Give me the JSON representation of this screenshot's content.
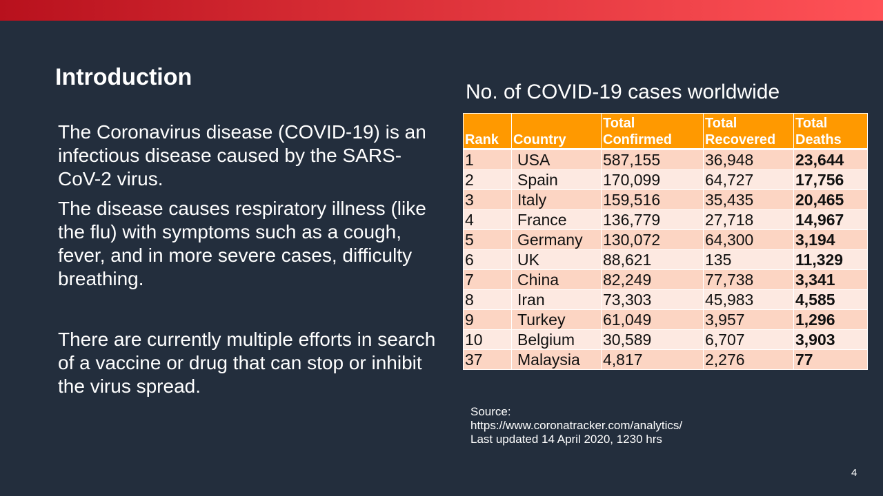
{
  "slide": {
    "title": "Introduction",
    "paragraphs": [
      "The Coronavirus disease (COVID-19) is an infectious disease caused by the SARS-CoV-2 virus.",
      "The disease causes respiratory illness (like the flu) with symptoms such as a cough, fever, and in more severe cases, difficulty breathing.",
      "There are currently multiple efforts in search of a vaccine or drug that can stop or inhibit the virus spread."
    ],
    "page_number": "4"
  },
  "table": {
    "title": "No. of COVID-19 cases worldwide",
    "headers": {
      "rank": "Rank",
      "country": "Country",
      "confirmed_1": "Total",
      "confirmed_2": "Confirmed",
      "recovered_1": "Total",
      "recovered_2": "Recovered",
      "deaths_1": "Total",
      "deaths_2": "Deaths"
    },
    "rows": [
      {
        "rank": "1",
        "country": "USA",
        "confirmed": "587,155",
        "recovered": "36,948",
        "deaths": "23,644"
      },
      {
        "rank": "2",
        "country": "Spain",
        "confirmed": "170,099",
        "recovered": "64,727",
        "deaths": "17,756"
      },
      {
        "rank": "3",
        "country": "Italy",
        "confirmed": "159,516",
        "recovered": "35,435",
        "deaths": "20,465"
      },
      {
        "rank": "4",
        "country": "France",
        "confirmed": "136,779",
        "recovered": "27,718",
        "deaths": "14,967"
      },
      {
        "rank": "5",
        "country": "Germany",
        "confirmed": "130,072",
        "recovered": "64,300",
        "deaths": "3,194"
      },
      {
        "rank": "6",
        "country": "UK",
        "confirmed": "88,621",
        "recovered": "135",
        "deaths": "11,329"
      },
      {
        "rank": "7",
        "country": "China",
        "confirmed": "82,249",
        "recovered": "77,738",
        "deaths": "3,341"
      },
      {
        "rank": "8",
        "country": "Iran",
        "confirmed": "73,303",
        "recovered": "45,983",
        "deaths": "4,585"
      },
      {
        "rank": "9",
        "country": "Turkey",
        "confirmed": "61,049",
        "recovered": "3,957",
        "deaths": "1,296"
      },
      {
        "rank": "10",
        "country": "Belgium",
        "confirmed": "30,589",
        "recovered": "6,707",
        "deaths": "3,903"
      },
      {
        "rank": "37",
        "country": "Malaysia",
        "confirmed": "4,817",
        "recovered": "2,276",
        "deaths": "77"
      }
    ]
  },
  "source": {
    "label": "Source:",
    "url": "https://www.coronatracker.com/analytics/",
    "updated": "Last updated 14 April 2020, 1230 hrs"
  },
  "colors": {
    "background": "#232e3d",
    "accent_bar": "#d42a32",
    "header_fill": "#ff9900",
    "row_fill_odd": "#fcd5c3",
    "row_fill_even": "#fde9e1"
  }
}
